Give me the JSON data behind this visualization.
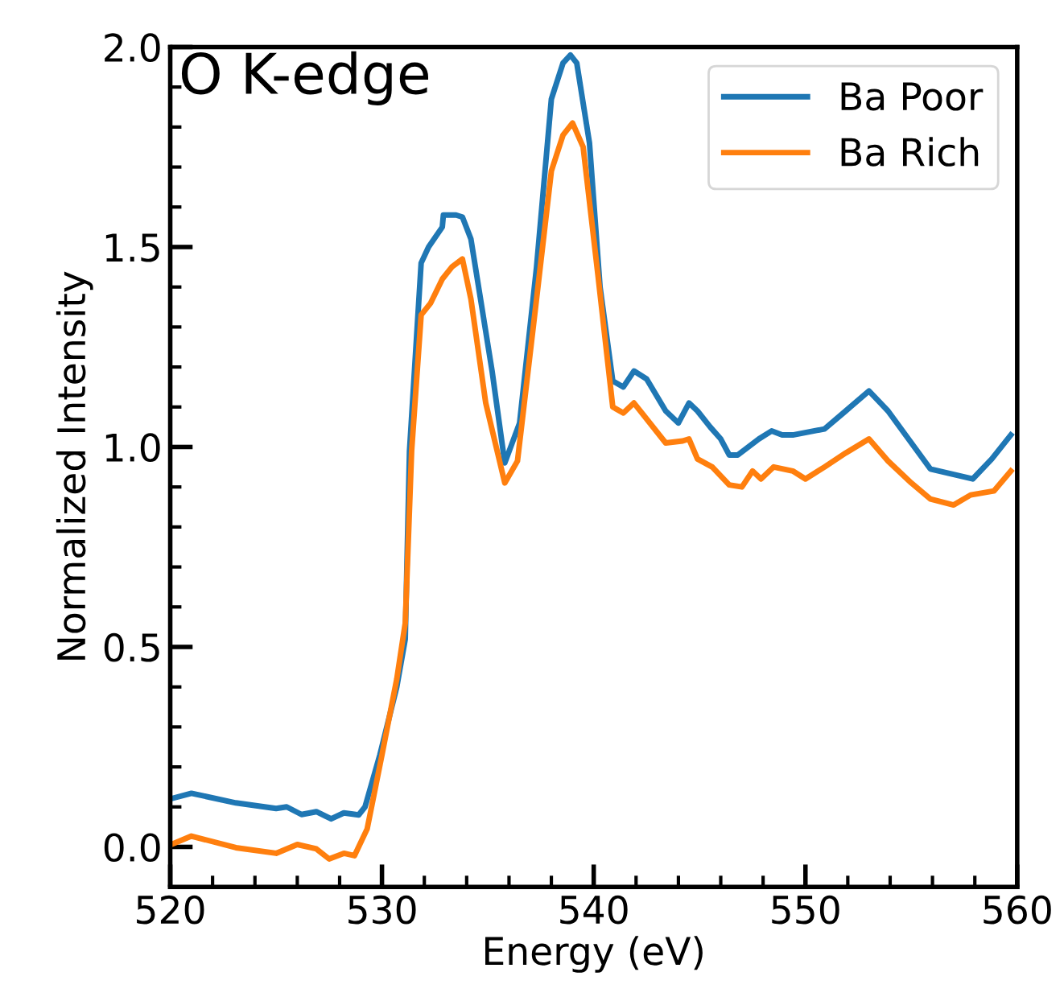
{
  "chart_data": {
    "type": "line",
    "xlabel": "Energy (eV)",
    "ylabel": "Normalized Intensity",
    "annotations": [
      "O K-edge"
    ],
    "xlim": [
      520,
      560
    ],
    "xticks": [
      520,
      530,
      540,
      550,
      560
    ],
    "ylim": [
      -0.1,
      2.0
    ],
    "yticks": [
      {
        "value": 0,
        "label": "0.0"
      },
      {
        "value": 0.5,
        "label": "0.5"
      },
      {
        "value": 1,
        "label": "1.0"
      },
      {
        "value": 1.5,
        "label": "1.5"
      },
      {
        "value": 2,
        "label": "2.0"
      }
    ],
    "legend": "top right",
    "grid": false,
    "line_style": "solid",
    "series": [
      {
        "name": "Ba Poor",
        "color": "#1f77b4",
        "x": [
          520,
          521,
          523.1,
          525.0,
          525.5,
          526.2,
          526.9,
          527.6,
          528.2,
          528.9,
          529.2,
          529.9,
          530.7,
          531.1,
          531.3,
          531.85,
          532.2,
          532.85,
          532.9,
          533.5,
          533.8,
          534.2,
          535.2,
          535.8,
          536.5,
          537.3,
          538.0,
          538.55,
          538.9,
          539.2,
          539.8,
          540.3,
          540.9,
          541.4,
          541.9,
          542.5,
          543.4,
          544.0,
          544.5,
          544.9,
          545.5,
          546.0,
          546.4,
          546.8,
          547.8,
          548.4,
          548.9,
          549.4,
          550.9,
          551.9,
          553.0,
          553.9,
          555.9,
          557.9,
          558.8,
          559.7
        ],
        "values": [
          0.12,
          0.134,
          0.11,
          0.096,
          0.1,
          0.081,
          0.088,
          0.07,
          0.085,
          0.08,
          0.1,
          0.23,
          0.4,
          0.52,
          0.99,
          1.46,
          1.5,
          1.55,
          1.58,
          1.58,
          1.575,
          1.52,
          1.19,
          0.96,
          1.06,
          1.45,
          1.87,
          1.96,
          1.98,
          1.96,
          1.76,
          1.4,
          1.165,
          1.15,
          1.19,
          1.17,
          1.09,
          1.06,
          1.11,
          1.09,
          1.05,
          1.02,
          0.98,
          0.98,
          1.02,
          1.04,
          1.03,
          1.03,
          1.045,
          1.09,
          1.14,
          1.09,
          0.945,
          0.92,
          0.97,
          1.03
        ]
      },
      {
        "name": "Ba Rich",
        "color": "#ff7f0e",
        "x": [
          520,
          521,
          523.1,
          525.0,
          526.0,
          526.9,
          527.5,
          528.2,
          528.7,
          529.3,
          530.0,
          530.7,
          531.1,
          531.4,
          531.85,
          532.3,
          532.85,
          533.3,
          533.8,
          534.2,
          534.9,
          535.8,
          536.4,
          537.3,
          538.0,
          538.55,
          539.0,
          539.5,
          540.2,
          540.9,
          541.4,
          541.9,
          543.4,
          544.2,
          544.5,
          544.9,
          545.6,
          546.4,
          547.0,
          547.5,
          547.9,
          548.5,
          549.4,
          550.0,
          550.9,
          551.9,
          553.0,
          553.9,
          555.0,
          555.9,
          557.0,
          557.8,
          558.9,
          559.7
        ],
        "values": [
          0.005,
          0.027,
          -0.002,
          -0.016,
          0.006,
          -0.005,
          -0.03,
          -0.016,
          -0.022,
          0.045,
          0.23,
          0.42,
          0.56,
          0.99,
          1.33,
          1.36,
          1.42,
          1.45,
          1.47,
          1.37,
          1.11,
          0.91,
          0.965,
          1.37,
          1.69,
          1.78,
          1.81,
          1.75,
          1.43,
          1.1,
          1.085,
          1.11,
          1.01,
          1.015,
          1.02,
          0.97,
          0.95,
          0.905,
          0.9,
          0.94,
          0.92,
          0.95,
          0.94,
          0.92,
          0.95,
          0.985,
          1.02,
          0.965,
          0.91,
          0.87,
          0.855,
          0.88,
          0.89,
          0.94
        ]
      }
    ]
  }
}
